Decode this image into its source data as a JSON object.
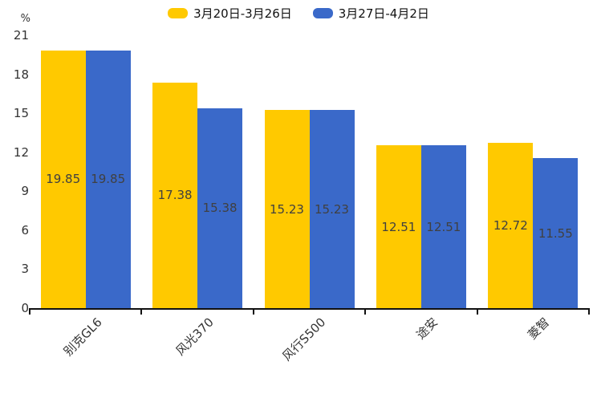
{
  "chart_data": {
    "type": "bar",
    "title": "",
    "xlabel": "",
    "ylabel": "%",
    "categories": [
      "别克GL6",
      "风光370",
      "风行S500",
      "途安",
      "菱智"
    ],
    "series": [
      {
        "name": "3月20日-3月26日",
        "color": "#FFC900",
        "values": [
          19.85,
          17.38,
          15.23,
          12.51,
          12.72
        ]
      },
      {
        "name": "3月27日-4月2日",
        "color": "#3A69C9",
        "values": [
          19.85,
          15.38,
          15.23,
          12.51,
          11.55
        ]
      }
    ],
    "ylim": [
      0,
      21
    ],
    "yticks": [
      0,
      3,
      6,
      9,
      12,
      15,
      18,
      21
    ],
    "grid": false,
    "legend_position": "top",
    "value_labels": "inside-center",
    "value_label_decimals": 2,
    "value_label_color": "#404040",
    "axis_color": "#111111",
    "tick_label_color": "#333333"
  }
}
